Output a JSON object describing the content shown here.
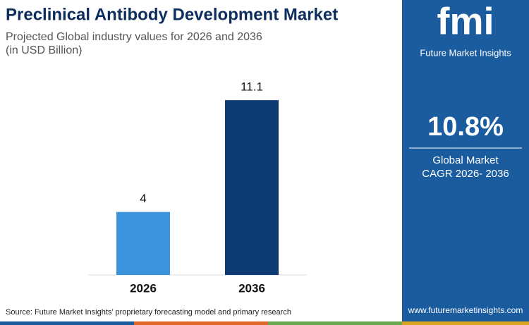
{
  "chart_data": {
    "type": "bar",
    "title": "Preclinical Antibody Development Market",
    "subtitle": [
      "Projected Global industry values for 2026 and 2036",
      "(in USD Billion)"
    ],
    "categories": [
      "2026",
      "2036"
    ],
    "values": [
      4,
      11.1
    ],
    "colors": [
      "#3b93db",
      "#0e3b73"
    ],
    "ylim": [
      0,
      12
    ]
  },
  "sidebar": {
    "logo": "fmi",
    "brand": "Future Market Insights",
    "cagr": "10.8%",
    "cagr_label": [
      "Global Market",
      "CAGR 2026- 2036"
    ],
    "website": "www.futuremarketinsights.com"
  },
  "footer": {
    "source": "Source: Future Market Insights’ proprietary forecasting model and primary research"
  }
}
